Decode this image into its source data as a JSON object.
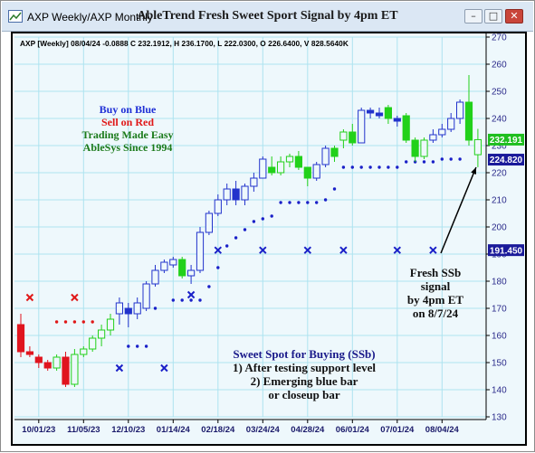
{
  "window": {
    "app_title": "AXP Weekly/AXP Monthly",
    "header_title": "AbleTrend Fresh Sweet Sport Signal by 4pm ET",
    "minimize_glyph": "–",
    "maximize_glyph": "□",
    "close_glyph": "✕",
    "app_icon": "chart-icon"
  },
  "info_line": "AXP [Weekly] 08/04/24   -0.0888 C 232.1912, H 236.1700, L 222.0300, O 226.6400, V 828.5640K",
  "legend": {
    "line1": "Buy on Blue",
    "line2": "Sell on Red",
    "line3": "Trading Made Easy",
    "line4": "AbleSys Since 1994",
    "colors": {
      "blue": "#1f2fd6",
      "red": "#e01818",
      "green": "#1a7a1a"
    }
  },
  "annotation_signal": [
    "Fresh SSb",
    "signal",
    "by 4pm ET",
    "on 8/7/24"
  ],
  "annotation_sweet": [
    "Sweet Spot for Buying (SSb)",
    "1) After testing support level",
    "2) Emerging blue bar",
    "or closeup bar"
  ],
  "chart_data": {
    "type": "candlestick",
    "ylim": [
      130,
      270
    ],
    "y_ticks": [
      130,
      140,
      150,
      160,
      170,
      180,
      190,
      200,
      210,
      220,
      230,
      240,
      250,
      260,
      270
    ],
    "x_tick_labels": [
      "10/01/23",
      "11/05/23",
      "12/10/23",
      "01/14/24",
      "02/18/24",
      "03/24/24",
      "04/28/24",
      "06/01/24",
      "07/01/24",
      "08/04/24"
    ],
    "x_tick_bar_index": [
      2,
      7,
      12,
      17,
      22,
      27,
      32,
      37,
      42,
      47
    ],
    "price_labels": [
      {
        "value": "232.191",
        "y": 232.19,
        "color": "#1fbf1f"
      },
      {
        "value": "224.820",
        "y": 224.82,
        "color": "#1a1a9a"
      },
      {
        "value": "191.450",
        "y": 191.45,
        "color": "#1a1a9a"
      }
    ],
    "candles": [
      {
        "o": 164,
        "h": 168,
        "l": 152,
        "c": 154,
        "color": "red"
      },
      {
        "o": 154,
        "h": 156,
        "l": 152,
        "c": 153,
        "color": "red"
      },
      {
        "o": 152,
        "h": 153,
        "l": 148,
        "c": 150,
        "color": "red"
      },
      {
        "o": 150,
        "h": 151,
        "l": 147,
        "c": 148,
        "color": "red"
      },
      {
        "o": 148,
        "h": 153,
        "l": 147,
        "c": 152,
        "color": "green"
      },
      {
        "o": 152,
        "h": 154,
        "l": 141,
        "c": 142,
        "color": "red"
      },
      {
        "o": 142,
        "h": 155,
        "l": 141,
        "c": 153,
        "color": "green"
      },
      {
        "o": 153,
        "h": 156,
        "l": 152,
        "c": 155,
        "color": "green"
      },
      {
        "o": 155,
        "h": 160,
        "l": 154,
        "c": 159,
        "color": "green"
      },
      {
        "o": 159,
        "h": 164,
        "l": 156,
        "c": 162,
        "color": "green"
      },
      {
        "o": 162,
        "h": 168,
        "l": 160,
        "c": 166,
        "color": "green"
      },
      {
        "o": 168,
        "h": 174,
        "l": 164,
        "c": 172,
        "color": "blue"
      },
      {
        "o": 170,
        "h": 172,
        "l": 163,
        "c": 168,
        "color": "blue"
      },
      {
        "o": 168,
        "h": 174,
        "l": 166,
        "c": 172,
        "color": "blue"
      },
      {
        "o": 170,
        "h": 180,
        "l": 169,
        "c": 179,
        "color": "blue"
      },
      {
        "o": 179,
        "h": 186,
        "l": 178,
        "c": 184,
        "color": "blue"
      },
      {
        "o": 184,
        "h": 188,
        "l": 183,
        "c": 187,
        "color": "blue"
      },
      {
        "o": 186,
        "h": 189,
        "l": 185,
        "c": 188,
        "color": "blue"
      },
      {
        "o": 188,
        "h": 189,
        "l": 181,
        "c": 182,
        "color": "green"
      },
      {
        "o": 182,
        "h": 186,
        "l": 179,
        "c": 184,
        "color": "blue"
      },
      {
        "o": 184,
        "h": 200,
        "l": 183,
        "c": 198,
        "color": "blue"
      },
      {
        "o": 198,
        "h": 206,
        "l": 197,
        "c": 205,
        "color": "blue"
      },
      {
        "o": 205,
        "h": 212,
        "l": 204,
        "c": 210,
        "color": "blue"
      },
      {
        "o": 210,
        "h": 216,
        "l": 208,
        "c": 214,
        "color": "blue"
      },
      {
        "o": 214,
        "h": 217,
        "l": 208,
        "c": 210,
        "color": "blue"
      },
      {
        "o": 210,
        "h": 216,
        "l": 208,
        "c": 215,
        "color": "blue"
      },
      {
        "o": 215,
        "h": 220,
        "l": 213,
        "c": 218,
        "color": "blue"
      },
      {
        "o": 218,
        "h": 226,
        "l": 218,
        "c": 225,
        "color": "blue"
      },
      {
        "o": 222,
        "h": 226,
        "l": 219,
        "c": 220,
        "color": "green"
      },
      {
        "o": 220,
        "h": 226,
        "l": 219,
        "c": 224,
        "color": "green"
      },
      {
        "o": 224,
        "h": 227,
        "l": 222,
        "c": 226,
        "color": "green"
      },
      {
        "o": 226,
        "h": 228,
        "l": 221,
        "c": 222,
        "color": "green"
      },
      {
        "o": 222,
        "h": 222,
        "l": 215,
        "c": 218,
        "color": "green"
      },
      {
        "o": 218,
        "h": 224,
        "l": 217,
        "c": 223,
        "color": "blue"
      },
      {
        "o": 223,
        "h": 230,
        "l": 222,
        "c": 229,
        "color": "blue"
      },
      {
        "o": 229,
        "h": 230,
        "l": 224,
        "c": 226,
        "color": "green"
      },
      {
        "o": 232,
        "h": 236,
        "l": 229,
        "c": 235,
        "color": "green"
      },
      {
        "o": 235,
        "h": 238,
        "l": 230,
        "c": 231,
        "color": "green"
      },
      {
        "o": 231,
        "h": 244,
        "l": 231,
        "c": 243,
        "color": "blue"
      },
      {
        "o": 243,
        "h": 244,
        "l": 240,
        "c": 242,
        "color": "blue"
      },
      {
        "o": 242,
        "h": 244,
        "l": 240,
        "c": 241,
        "color": "blue"
      },
      {
        "o": 244,
        "h": 245,
        "l": 238,
        "c": 240,
        "color": "green"
      },
      {
        "o": 240,
        "h": 241,
        "l": 237,
        "c": 239,
        "color": "blue"
      },
      {
        "o": 241,
        "h": 242,
        "l": 231,
        "c": 232,
        "color": "green"
      },
      {
        "o": 232,
        "h": 233,
        "l": 224,
        "c": 226,
        "color": "green"
      },
      {
        "o": 226,
        "h": 233,
        "l": 225,
        "c": 232,
        "color": "green"
      },
      {
        "o": 232,
        "h": 236,
        "l": 231,
        "c": 234,
        "color": "blue"
      },
      {
        "o": 234,
        "h": 238,
        "l": 233,
        "c": 236,
        "color": "blue"
      },
      {
        "o": 236,
        "h": 242,
        "l": 235,
        "c": 240,
        "color": "blue"
      },
      {
        "o": 240,
        "h": 247,
        "l": 238,
        "c": 246,
        "color": "blue"
      },
      {
        "o": 246,
        "h": 256,
        "l": 230,
        "c": 232,
        "color": "green"
      },
      {
        "o": 226.64,
        "h": 236.17,
        "l": 222.03,
        "c": 232.19,
        "color": "green"
      }
    ],
    "support_dots": [
      {
        "i": 4,
        "y": 165,
        "color": "red"
      },
      {
        "i": 5,
        "y": 165,
        "color": "red"
      },
      {
        "i": 6,
        "y": 165,
        "color": "red"
      },
      {
        "i": 7,
        "y": 165,
        "color": "red"
      },
      {
        "i": 8,
        "y": 165,
        "color": "red"
      },
      {
        "i": 12,
        "y": 156,
        "color": "blue"
      },
      {
        "i": 13,
        "y": 156,
        "color": "blue"
      },
      {
        "i": 14,
        "y": 156,
        "color": "blue"
      },
      {
        "i": 15,
        "y": 170,
        "color": "blue"
      },
      {
        "i": 17,
        "y": 173,
        "color": "blue"
      },
      {
        "i": 18,
        "y": 173,
        "color": "blue"
      },
      {
        "i": 19,
        "y": 173,
        "color": "blue"
      },
      {
        "i": 20,
        "y": 173,
        "color": "blue"
      },
      {
        "i": 21,
        "y": 178,
        "color": "blue"
      },
      {
        "i": 22,
        "y": 185,
        "color": "blue"
      },
      {
        "i": 23,
        "y": 193,
        "color": "blue"
      },
      {
        "i": 24,
        "y": 196,
        "color": "blue"
      },
      {
        "i": 25,
        "y": 199,
        "color": "blue"
      },
      {
        "i": 26,
        "y": 202,
        "color": "blue"
      },
      {
        "i": 27,
        "y": 203,
        "color": "blue"
      },
      {
        "i": 28,
        "y": 204,
        "color": "blue"
      },
      {
        "i": 29,
        "y": 209,
        "color": "blue"
      },
      {
        "i": 30,
        "y": 209,
        "color": "blue"
      },
      {
        "i": 31,
        "y": 209,
        "color": "blue"
      },
      {
        "i": 32,
        "y": 209,
        "color": "blue"
      },
      {
        "i": 33,
        "y": 209,
        "color": "blue"
      },
      {
        "i": 34,
        "y": 210,
        "color": "blue"
      },
      {
        "i": 35,
        "y": 214,
        "color": "blue"
      },
      {
        "i": 36,
        "y": 222,
        "color": "blue"
      },
      {
        "i": 37,
        "y": 222,
        "color": "blue"
      },
      {
        "i": 38,
        "y": 222,
        "color": "blue"
      },
      {
        "i": 39,
        "y": 222,
        "color": "blue"
      },
      {
        "i": 40,
        "y": 222,
        "color": "blue"
      },
      {
        "i": 41,
        "y": 222,
        "color": "blue"
      },
      {
        "i": 42,
        "y": 222,
        "color": "blue"
      },
      {
        "i": 43,
        "y": 224,
        "color": "blue"
      },
      {
        "i": 44,
        "y": 224,
        "color": "blue"
      },
      {
        "i": 45,
        "y": 224,
        "color": "blue"
      },
      {
        "i": 46,
        "y": 224,
        "color": "blue"
      },
      {
        "i": 47,
        "y": 225,
        "color": "blue"
      },
      {
        "i": 48,
        "y": 225,
        "color": "blue"
      },
      {
        "i": 49,
        "y": 225,
        "color": "blue"
      }
    ],
    "x_markers": [
      {
        "i": 1,
        "y": 174,
        "color": "red"
      },
      {
        "i": 6,
        "y": 174,
        "color": "red"
      },
      {
        "i": 11,
        "y": 148,
        "color": "blue"
      },
      {
        "i": 16,
        "y": 148,
        "color": "blue"
      },
      {
        "i": 19,
        "y": 175,
        "color": "blue"
      },
      {
        "i": 22,
        "y": 191.45,
        "color": "blue"
      },
      {
        "i": 27,
        "y": 191.45,
        "color": "blue"
      },
      {
        "i": 32,
        "y": 191.45,
        "color": "blue"
      },
      {
        "i": 36,
        "y": 191.45,
        "color": "blue"
      },
      {
        "i": 42,
        "y": 191.45,
        "color": "blue"
      },
      {
        "i": 46,
        "y": 191.45,
        "color": "blue"
      }
    ],
    "candle_colors": {
      "red": "#e0141e",
      "green": "#22d11a",
      "blue": "#2233cc"
    }
  }
}
